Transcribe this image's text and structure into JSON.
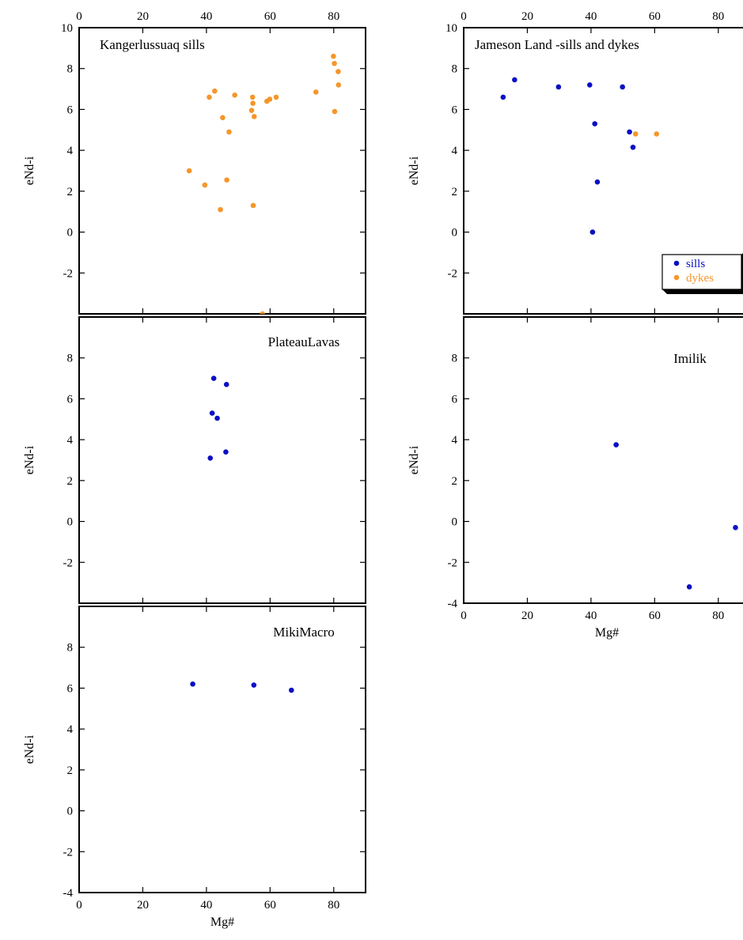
{
  "colors": {
    "sills": "#0a0fc4",
    "dykes": "#f6962a",
    "axes": "#000000",
    "background": "#ffffff"
  },
  "chart_data": [
    {
      "type": "scatter",
      "title": "Kangerlussuaq sills",
      "ylabel": "eNd-i",
      "xlabel": "",
      "xlim": [
        0,
        90
      ],
      "ylim": [
        -4,
        10
      ],
      "x_ticks": [
        "0",
        "20",
        "40",
        "60",
        "80"
      ],
      "x_ticks_position": "top",
      "y_ticks": [
        "-2",
        "0",
        "2",
        "4",
        "6",
        "8",
        "10"
      ],
      "series": [
        {
          "color": "#f6962a",
          "points": [
            [
              34.6,
              3.0
            ],
            [
              39.5,
              2.3
            ],
            [
              40.9,
              6.6
            ],
            [
              42.6,
              6.9
            ],
            [
              44.4,
              1.1
            ],
            [
              45.1,
              5.6
            ],
            [
              46.4,
              2.55
            ],
            [
              47.1,
              4.9
            ],
            [
              48.9,
              6.7
            ],
            [
              54.2,
              5.95
            ],
            [
              54.5,
              6.6
            ],
            [
              54.6,
              6.3
            ],
            [
              54.7,
              1.3
            ],
            [
              55.0,
              5.65
            ],
            [
              57.6,
              -4.0
            ],
            [
              59.0,
              6.4
            ],
            [
              59.9,
              6.5
            ],
            [
              61.9,
              6.6
            ],
            [
              74.4,
              6.85
            ],
            [
              79.9,
              8.6
            ],
            [
              80.2,
              8.25
            ],
            [
              80.3,
              5.9
            ],
            [
              81.4,
              7.85
            ],
            [
              81.5,
              7.2
            ]
          ]
        }
      ]
    },
    {
      "type": "scatter",
      "title": "Jameson Land -sills and dykes",
      "ylabel": "eNd-i",
      "xlabel": "",
      "xlim": [
        0,
        90
      ],
      "ylim": [
        -4,
        10
      ],
      "x_ticks": [
        "0",
        "20",
        "40",
        "60",
        "80"
      ],
      "x_ticks_position": "top",
      "y_ticks": [
        "-2",
        "0",
        "2",
        "4",
        "6",
        "8",
        "10"
      ],
      "legend_position": "lower-right",
      "series": [
        {
          "name": "sills",
          "color": "#0a0fc4",
          "points": [
            [
              12.4,
              6.6
            ],
            [
              16.0,
              7.45
            ],
            [
              29.8,
              7.1
            ],
            [
              39.6,
              7.2
            ],
            [
              40.5,
              0.0
            ],
            [
              41.2,
              5.3
            ],
            [
              42.0,
              2.45
            ],
            [
              49.9,
              7.1
            ],
            [
              52.1,
              4.9
            ],
            [
              53.2,
              4.15
            ]
          ]
        },
        {
          "name": "dykes",
          "color": "#f6962a",
          "points": [
            [
              54.0,
              4.8
            ],
            [
              60.6,
              4.8
            ]
          ]
        }
      ]
    },
    {
      "type": "scatter",
      "title": "PlateauLavas",
      "ylabel": "eNd-i",
      "xlabel": "",
      "xlim": [
        0,
        90
      ],
      "ylim": [
        -4,
        10
      ],
      "y_ticks": [
        "-2",
        "0",
        "2",
        "4",
        "6",
        "8"
      ],
      "series": [
        {
          "color": "#0a0fc4",
          "points": [
            [
              41.2,
              3.1
            ],
            [
              41.8,
              5.3
            ],
            [
              42.3,
              7.0
            ],
            [
              43.4,
              5.05
            ],
            [
              46.1,
              3.4
            ],
            [
              46.3,
              6.7
            ]
          ]
        }
      ]
    },
    {
      "type": "scatter",
      "title": "Imilik",
      "ylabel": "eNd-i",
      "xlabel": "Mg#",
      "xlim": [
        0,
        90
      ],
      "ylim": [
        -4,
        10
      ],
      "x_ticks": [
        "0",
        "20",
        "40",
        "60",
        "80"
      ],
      "y_ticks": [
        "-4",
        "-2",
        "0",
        "2",
        "4",
        "6",
        "8"
      ],
      "series": [
        {
          "color": "#0a0fc4",
          "points": [
            [
              47.9,
              3.75
            ],
            [
              70.9,
              -3.2
            ],
            [
              85.4,
              -0.3
            ]
          ]
        }
      ]
    },
    {
      "type": "scatter",
      "title": "MikiMacro",
      "ylabel": "eNd-i",
      "xlabel": "Mg#",
      "xlim": [
        0,
        90
      ],
      "ylim": [
        -4,
        10
      ],
      "x_ticks": [
        "0",
        "20",
        "40",
        "60",
        "80"
      ],
      "y_ticks": [
        "-4",
        "-2",
        "0",
        "2",
        "4",
        "6",
        "8"
      ],
      "series": [
        {
          "color": "#0a0fc4",
          "points": [
            [
              35.7,
              6.2
            ],
            [
              54.9,
              6.15
            ],
            [
              66.7,
              5.9
            ]
          ]
        }
      ]
    }
  ]
}
